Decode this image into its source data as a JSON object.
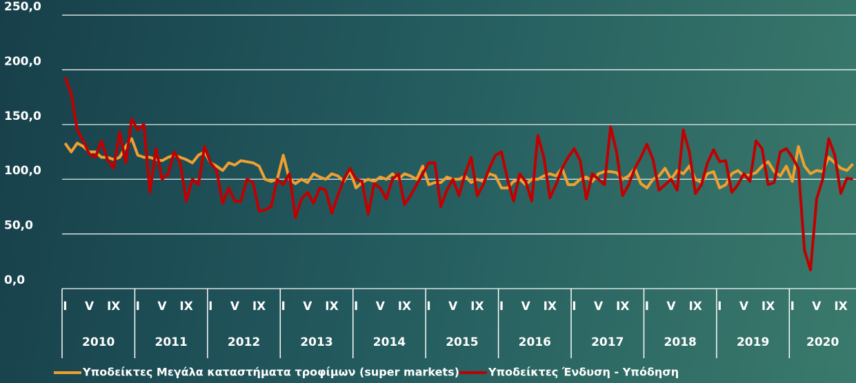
{
  "chart_data": {
    "type": "line",
    "categories": [
      "I",
      null,
      null,
      null,
      "V",
      null,
      null,
      null,
      "IX",
      null,
      null,
      null,
      "I",
      null,
      null,
      null,
      "V",
      null,
      null,
      null,
      "IX",
      null,
      null,
      null,
      "I",
      null,
      null,
      null,
      "V",
      null,
      null,
      null,
      "IX",
      null,
      null,
      null,
      "I",
      null,
      null,
      null,
      "V",
      null,
      null,
      null,
      "IX",
      null,
      null,
      null,
      "I",
      null,
      null,
      null,
      "V",
      null,
      null,
      null,
      "IX",
      null,
      null,
      null,
      "I",
      null,
      null,
      null,
      "V",
      null,
      null,
      null,
      "IX",
      null,
      null,
      null,
      "I",
      null,
      null,
      null,
      "V",
      null,
      null,
      null,
      "IX",
      null,
      null,
      null,
      "I",
      null,
      null,
      null,
      "V",
      null,
      null,
      null,
      "IX",
      null,
      null,
      null,
      "I",
      null,
      null,
      null,
      "V",
      null,
      null,
      null,
      "IX",
      null,
      null,
      null,
      "I",
      null,
      null,
      null,
      "V",
      null,
      null,
      null,
      "IX",
      null,
      null,
      null,
      "I",
      null,
      null,
      null,
      "V",
      null,
      null,
      null,
      "IX",
      null,
      null
    ],
    "years": [
      "2010",
      "2011",
      "2012",
      "2013",
      "2014",
      "2015",
      "2016",
      "2017",
      "2018",
      "2019",
      "2020"
    ],
    "series": [
      {
        "name": "Υποδείκτες Μεγάλα καταστήματα τροφίμων (super markets)",
        "color": "#f0a030",
        "values": [
          133,
          125,
          133,
          130,
          125,
          125,
          120,
          120,
          118,
          120,
          130,
          137,
          122,
          120,
          120,
          118,
          117,
          120,
          122,
          120,
          118,
          115,
          122,
          125,
          115,
          112,
          108,
          115,
          113,
          117,
          116,
          115,
          112,
          100,
          98,
          100,
          122,
          100,
          96,
          100,
          97,
          105,
          102,
          100,
          105,
          103,
          98,
          108,
          92,
          97,
          100,
          98,
          102,
          100,
          105,
          100,
          105,
          103,
          100,
          112,
          95,
          97,
          97,
          102,
          100,
          100,
          103,
          97,
          100,
          98,
          105,
          103,
          92,
          92,
          98,
          100,
          95,
          100,
          100,
          103,
          105,
          103,
          110,
          95,
          95,
          100,
          102,
          98,
          105,
          107,
          107,
          106,
          100,
          103,
          110,
          96,
          92,
          100,
          103,
          110,
          100,
          108,
          105,
          112,
          100,
          97,
          105,
          107,
          92,
          95,
          105,
          108,
          103,
          104,
          106,
          112,
          116,
          107,
          103,
          112,
          98,
          130,
          112,
          105,
          108,
          107,
          120,
          115,
          110,
          108,
          114
        ]
      },
      {
        "name": "Υποδείκτες Ένδυση - Υπόδηση",
        "color": "#c00000",
        "values": [
          193,
          178,
          145,
          135,
          123,
          120,
          135,
          118,
          110,
          143,
          115,
          155,
          145,
          150,
          88,
          128,
          100,
          105,
          125,
          115,
          80,
          100,
          95,
          130,
          115,
          108,
          78,
          92,
          80,
          80,
          100,
          97,
          71,
          72,
          75,
          100,
          95,
          105,
          65,
          82,
          88,
          78,
          92,
          90,
          69,
          85,
          100,
          110,
          100,
          98,
          68,
          96,
          92,
          82,
          100,
          105,
          77,
          85,
          95,
          105,
          115,
          115,
          75,
          90,
          100,
          85,
          105,
          120,
          85,
          95,
          110,
          122,
          125,
          100,
          80,
          105,
          98,
          80,
          140,
          120,
          83,
          95,
          110,
          120,
          128,
          117,
          82,
          105,
          100,
          95,
          148,
          125,
          85,
          95,
          110,
          120,
          132,
          118,
          90,
          95,
          100,
          90,
          145,
          125,
          87,
          95,
          115,
          127,
          116,
          117,
          88,
          95,
          105,
          98,
          135,
          128,
          95,
          97,
          125,
          128,
          120,
          110,
          35,
          17,
          82,
          100,
          137,
          122,
          87,
          101,
          100
        ]
      }
    ],
    "ylim": [
      0,
      250
    ],
    "yticks": [
      {
        "value": 0,
        "label": "0,0"
      },
      {
        "value": 50,
        "label": "50,0"
      },
      {
        "value": 100,
        "label": "100,0"
      },
      {
        "value": 150,
        "label": "150,0"
      },
      {
        "value": 200,
        "label": "200,0"
      },
      {
        "value": 250,
        "label": "250,0"
      }
    ],
    "grid": true
  }
}
